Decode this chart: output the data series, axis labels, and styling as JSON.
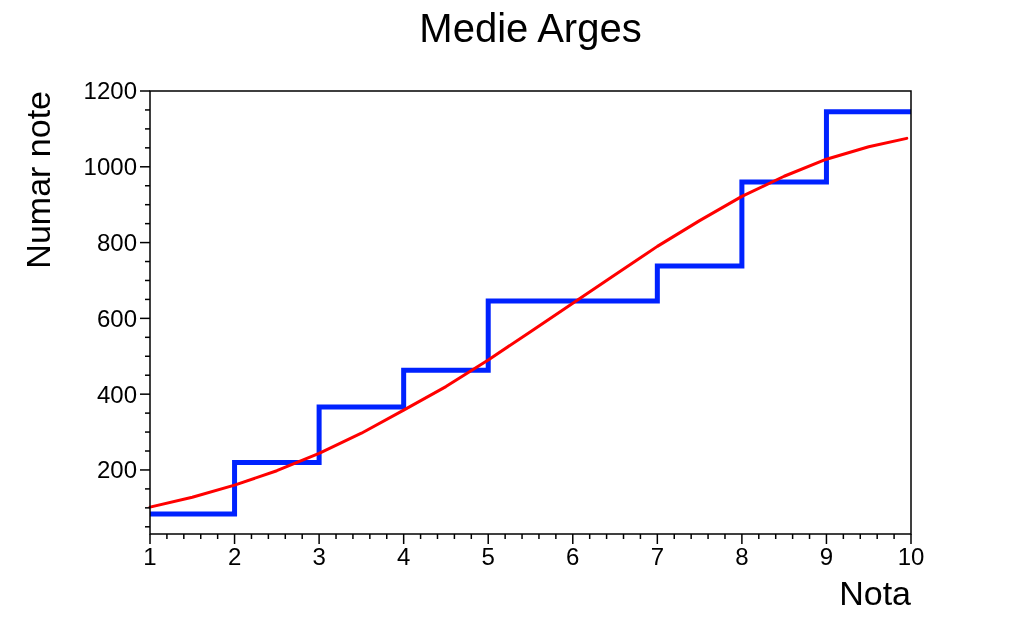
{
  "chart_data": {
    "type": "histogram",
    "title": "Medie Arges",
    "xlabel": "Nota",
    "ylabel": "Numar note",
    "bins": [
      1,
      2,
      3,
      4,
      5,
      6,
      7,
      8,
      9,
      10
    ],
    "values": [
      84,
      220,
      366,
      463,
      646,
      646,
      738,
      960,
      1145
    ],
    "color": "#0022ff",
    "series": [
      {
        "type": "line",
        "color": "#ff0000",
        "x": [
          1,
          1.5,
          2,
          2.5,
          3,
          3.5,
          4,
          4.5,
          5,
          5.5,
          6,
          6.5,
          7,
          7.5,
          8,
          8.5,
          9,
          9.5,
          9.95
        ],
        "values": [
          102,
          128,
          160,
          198,
          244,
          297,
          358,
          420,
          490,
          565,
          640,
          715,
          790,
          858,
          922,
          975,
          1020,
          1053,
          1075
        ]
      }
    ],
    "xlim": [
      1,
      10
    ],
    "xticks": [
      1,
      {
        "value": 1.2,
        "label": null
      },
      {
        "value": 1.4,
        "label": null
      },
      {
        "value": 1.6,
        "label": null
      },
      {
        "value": 1.8,
        "label": null
      },
      2,
      {
        "value": 2.2,
        "label": null
      },
      {
        "value": 2.4,
        "label": null
      },
      {
        "value": 2.6,
        "label": null
      },
      {
        "value": 2.8,
        "label": null
      },
      3,
      {
        "value": 3.2,
        "label": null
      },
      {
        "value": 3.4,
        "label": null
      },
      {
        "value": 3.6,
        "label": null
      },
      {
        "value": 3.8,
        "label": null
      },
      4,
      {
        "value": 4.2,
        "label": null
      },
      {
        "value": 4.4,
        "label": null
      },
      {
        "value": 4.6,
        "label": null
      },
      {
        "value": 4.8,
        "label": null
      },
      5,
      {
        "value": 5.2,
        "label": null
      },
      {
        "value": 5.4,
        "label": null
      },
      {
        "value": 5.6,
        "label": null
      },
      {
        "value": 5.8,
        "label": null
      },
      6,
      {
        "value": 6.2,
        "label": null
      },
      {
        "value": 6.4,
        "label": null
      },
      {
        "value": 6.6,
        "label": null
      },
      {
        "value": 6.8,
        "label": null
      },
      7,
      {
        "value": 7.2,
        "label": null
      },
      {
        "value": 7.4,
        "label": null
      },
      {
        "value": 7.6,
        "label": null
      },
      {
        "value": 7.8,
        "label": null
      },
      8,
      {
        "value": 8.2,
        "label": null
      },
      {
        "value": 8.4,
        "label": null
      },
      {
        "value": 8.6,
        "label": null
      },
      {
        "value": 8.8,
        "label": null
      },
      9,
      {
        "value": 9.2,
        "label": null
      },
      {
        "value": 9.4,
        "label": null
      },
      {
        "value": 9.6,
        "label": null
      },
      {
        "value": 9.8,
        "label": null
      },
      10
    ],
    "ylim": [
      31,
      1200
    ],
    "yticks": [
      {
        "value": 50,
        "label": null
      },
      {
        "value": 100,
        "label": null
      },
      {
        "value": 150,
        "label": null
      },
      200,
      {
        "value": 250,
        "label": null
      },
      {
        "value": 300,
        "label": null
      },
      {
        "value": 350,
        "label": null
      },
      400,
      {
        "value": 450,
        "label": null
      },
      {
        "value": 500,
        "label": null
      },
      {
        "value": 550,
        "label": null
      },
      600,
      {
        "value": 650,
        "label": null
      },
      {
        "value": 700,
        "label": null
      },
      {
        "value": 750,
        "label": null
      },
      800,
      {
        "value": 850,
        "label": null
      },
      {
        "value": 900,
        "label": null
      },
      {
        "value": 950,
        "label": null
      },
      1000,
      {
        "value": 1050,
        "label": null
      },
      {
        "value": 1100,
        "label": null
      },
      {
        "value": 1150,
        "label": null
      },
      1200
    ]
  }
}
